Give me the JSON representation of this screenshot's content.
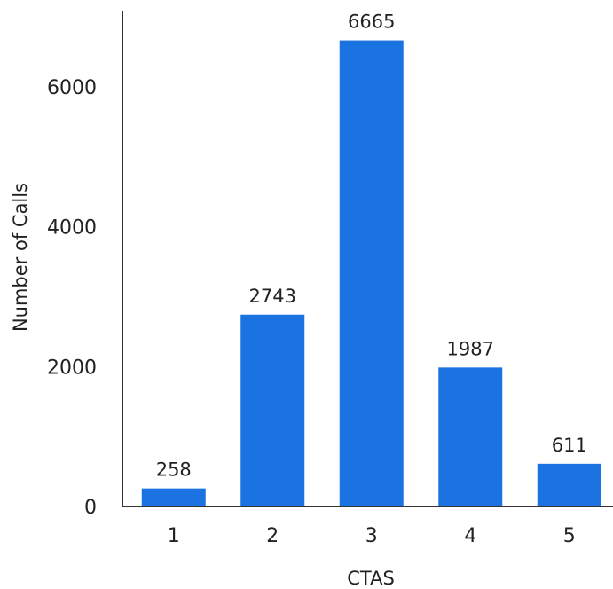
{
  "chart_data": {
    "type": "bar",
    "categories": [
      "1",
      "2",
      "3",
      "4",
      "5"
    ],
    "values": [
      258,
      2743,
      6665,
      1987,
      611
    ],
    "data_labels": [
      "258",
      "2743",
      "6665",
      "1987",
      "611"
    ],
    "title": "",
    "xlabel": "CTAS",
    "ylabel": "Number of Calls",
    "ylim": [
      0,
      7000
    ],
    "yticks": [
      0,
      2000,
      4000,
      6000
    ],
    "ytick_labels": [
      "0",
      "2000",
      "4000",
      "6000"
    ],
    "grid": false,
    "legend": "none",
    "bar_color": "#1a73e0"
  }
}
